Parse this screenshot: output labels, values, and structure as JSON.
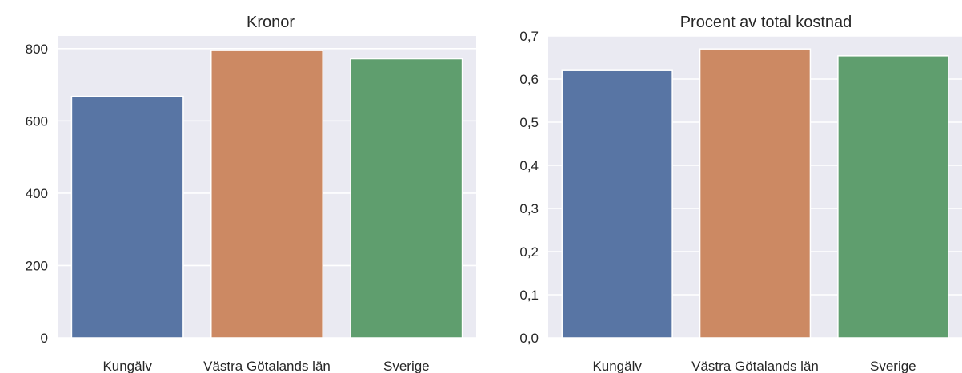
{
  "chart_data": [
    {
      "type": "bar",
      "title": "Kronor",
      "xlabel": "",
      "ylabel": "",
      "categories": [
        "Kungälv",
        "Västra Götalands län",
        "Sverige"
      ],
      "values": [
        668,
        795,
        772
      ],
      "ylim": [
        0,
        835
      ],
      "yticks": [
        0,
        200,
        400,
        600,
        800
      ],
      "ytick_labels": [
        "0",
        "200",
        "400",
        "600",
        "800"
      ],
      "colors": [
        "#5875a4",
        "#cc8963",
        "#5f9e6e"
      ],
      "grid": true,
      "background": "#eaeaf2"
    },
    {
      "type": "bar",
      "title": "Procent av total kostnad",
      "xlabel": "",
      "ylabel": "",
      "categories": [
        "Kungälv",
        "Västra Götalands län",
        "Sverige"
      ],
      "values": [
        0.62,
        0.67,
        0.654
      ],
      "ylim": [
        0,
        0.7
      ],
      "yticks": [
        0,
        0.1,
        0.2,
        0.3,
        0.4,
        0.5,
        0.6,
        0.7
      ],
      "ytick_labels": [
        "0,0",
        "0,1",
        "0,2",
        "0,3",
        "0,4",
        "0,5",
        "0,6",
        "0,7"
      ],
      "colors": [
        "#5875a4",
        "#cc8963",
        "#5f9e6e"
      ],
      "grid": true,
      "background": "#eaeaf2"
    }
  ]
}
